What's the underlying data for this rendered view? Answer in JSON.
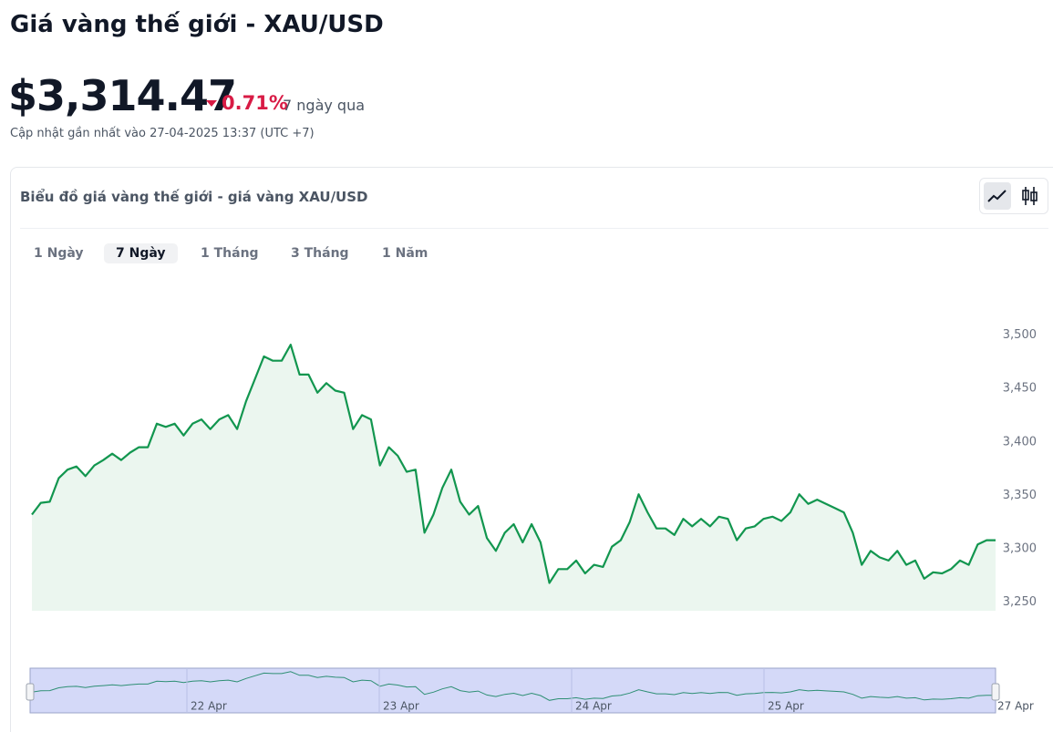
{
  "header": {
    "title": "Giá vàng thế giới - XAU/USD",
    "price": "$3,314.47",
    "change": "0.71%",
    "period": "7 ngày qua",
    "updated": "Cập nhật gần nhất vào 27-04-2025 13:37 (UTC +7)"
  },
  "card": {
    "title": "Biểu đồ giá vàng thế giới - giá vàng XAU/USD",
    "tabs": [
      "1 Ngày",
      "7 Ngày",
      "1 Tháng",
      "3 Tháng",
      "1 Năm"
    ],
    "active_tab": "7 Ngày"
  },
  "chart_data": {
    "type": "line",
    "values": [
      3332,
      3343,
      3344,
      3366,
      3374,
      3377,
      3368,
      3378,
      3383,
      3389,
      3383,
      3390,
      3395,
      3395,
      3417,
      3414,
      3417,
      3406,
      3417,
      3421,
      3412,
      3421,
      3425,
      3412,
      3438,
      3459,
      3480,
      3476,
      3476,
      3491,
      3463,
      3463,
      3446,
      3455,
      3448,
      3446,
      3412,
      3425,
      3421,
      3378,
      3395,
      3387,
      3372,
      3374,
      3315,
      3332,
      3357,
      3374,
      3344,
      3332,
      3340,
      3310,
      3298,
      3315,
      3323,
      3306,
      3323,
      3306,
      3268,
      3281,
      3281,
      3289,
      3277,
      3285,
      3283,
      3302,
      3308,
      3325,
      3351,
      3334,
      3319,
      3319,
      3313,
      3328,
      3321,
      3328,
      3321,
      3330,
      3328,
      3308,
      3319,
      3321,
      3328,
      3330,
      3326,
      3334,
      3351,
      3342,
      3346,
      3342,
      3338,
      3334,
      3315,
      3285,
      3298,
      3292,
      3289,
      3298,
      3285,
      3289,
      3272,
      3278,
      3277,
      3281,
      3289,
      3285,
      3304,
      3308,
      3308
    ],
    "color": "#12964f",
    "ylim": [
      3242,
      3532
    ],
    "yticks": [
      {
        "value": 3250,
        "label": "3,250"
      },
      {
        "value": 3300,
        "label": "3,300"
      },
      {
        "value": 3350,
        "label": "3,350"
      },
      {
        "value": 3400,
        "label": "3,400"
      },
      {
        "value": 3450,
        "label": "3,450"
      },
      {
        "value": 3500,
        "label": "3,500"
      }
    ],
    "navigator_labels": [
      "22 Apr",
      "23 Apr",
      "24 Apr",
      "25 Apr",
      "27 Apr"
    ]
  }
}
